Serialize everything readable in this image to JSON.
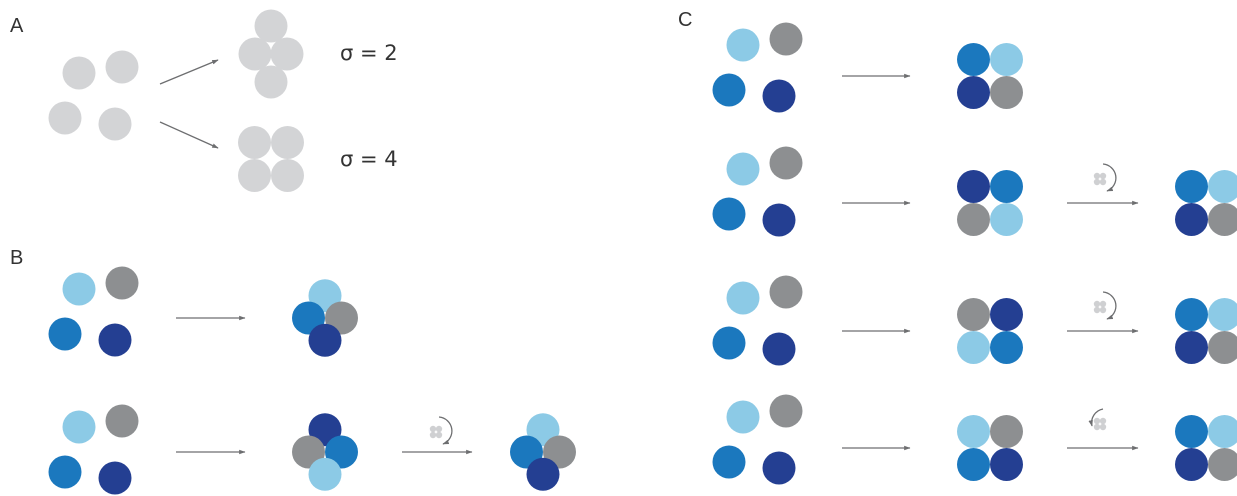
{
  "colors": {
    "grey_light": "#d3d4d6",
    "light_blue": "#8ccae6",
    "blue": "#1b78be",
    "dark_blue": "#243f92",
    "grey": "#8d8f91",
    "arrow": "#6d6e70",
    "text": "#333333"
  },
  "panels": {
    "a": {
      "letter": "A",
      "labels": [
        {
          "text": "σ = 2"
        },
        {
          "text": "σ = 4"
        }
      ]
    },
    "b": {
      "letter": "B"
    },
    "c": {
      "letter": "C"
    }
  },
  "icons": [
    "rotation-arrow-icon",
    "tetramer-glyph-icon"
  ]
}
